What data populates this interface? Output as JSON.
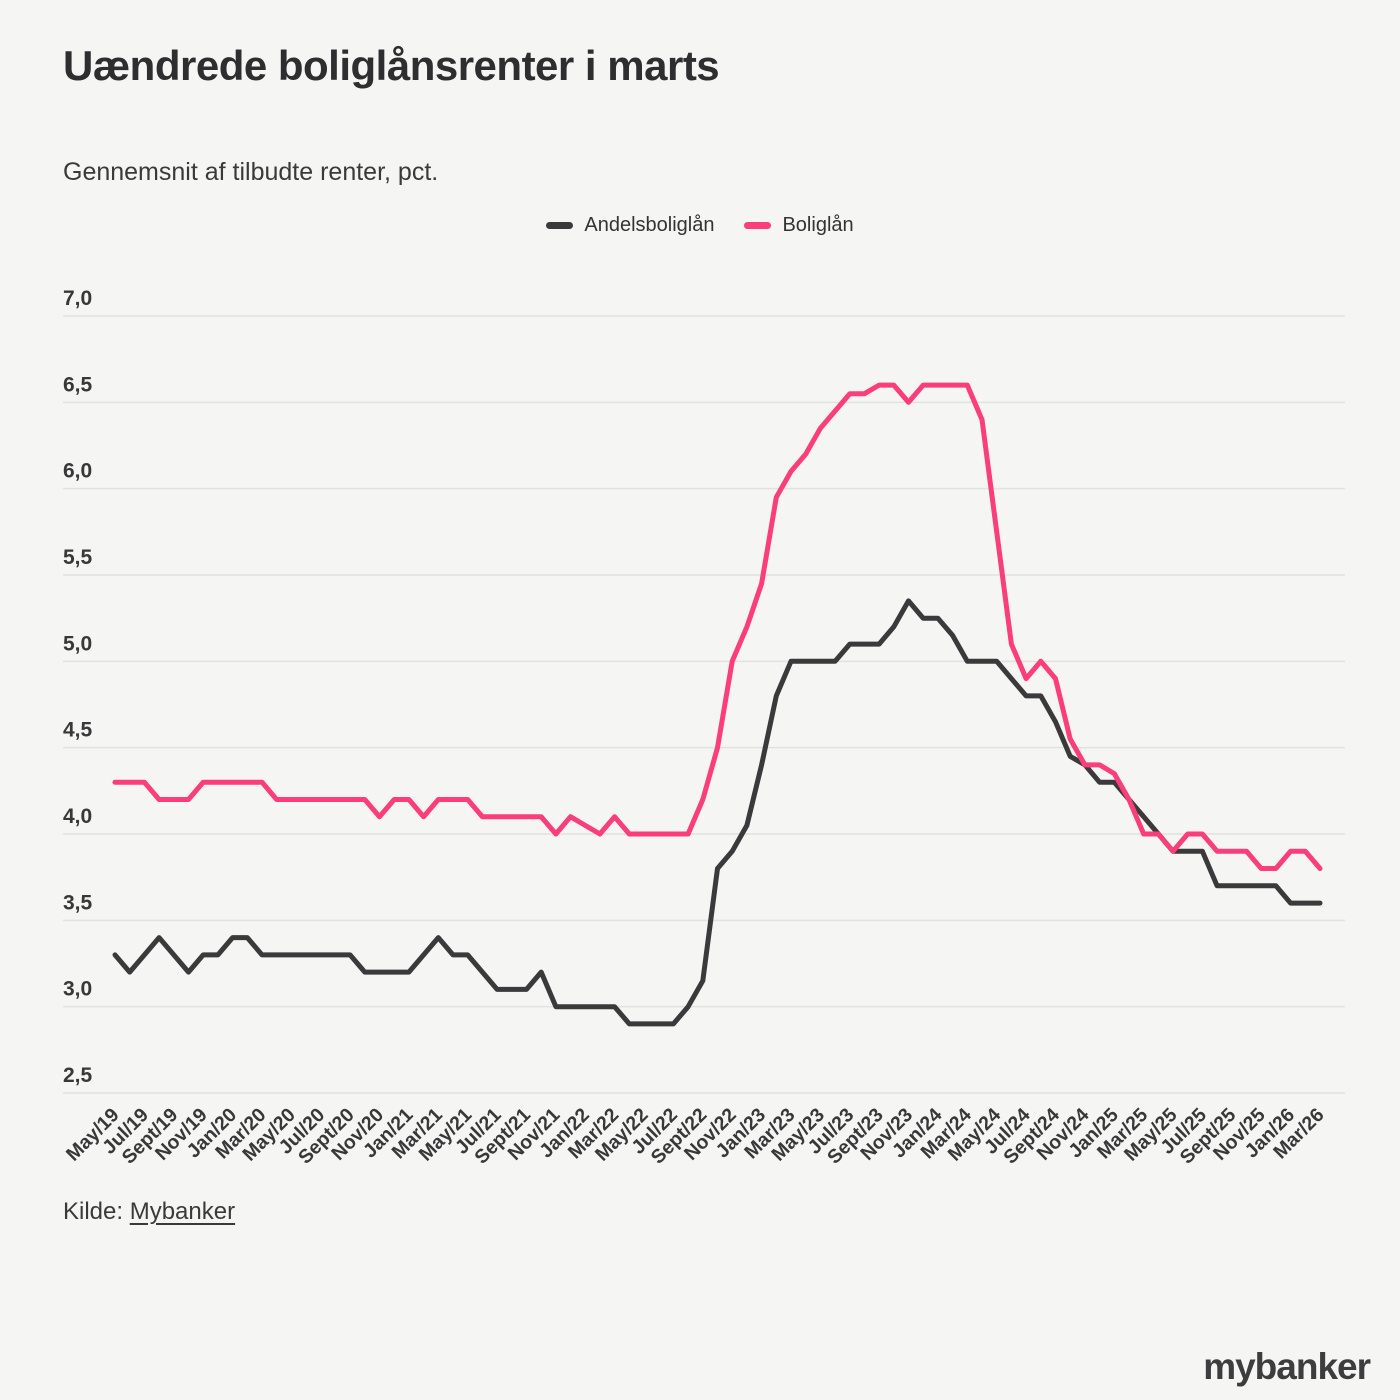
{
  "header": {
    "title": "Uændrede boliglånsrenter i marts",
    "subtitle": "Gennemsnit af tilbudte renter, pct."
  },
  "footer": {
    "source_label": "Kilde:",
    "source_link": "Mybanker",
    "logo": "mybanker"
  },
  "colors": {
    "background": "#f5f5f3",
    "gridline": "#e2e2e0",
    "axis_text": "#38383a",
    "andelsboliglan": "#3a3a3c",
    "boliglan": "#f93e7b"
  },
  "chart_data": {
    "type": "line",
    "title": "Uændrede boliglånsrenter i marts",
    "subtitle": "Gennemsnit af tilbudte renter, pct.",
    "grid": "horizontal",
    "legend_position": "top-center",
    "ylim": [
      2.5,
      7.0
    ],
    "y_tick_step": 0.5,
    "y_tick_labels": [
      "2,5",
      "3,0",
      "3,5",
      "4,0",
      "4,5",
      "5,0",
      "5,5",
      "6,0",
      "6,5",
      "7,0"
    ],
    "x_points_per_tick": 2,
    "x_tick_labels": [
      "May/19",
      "Jul/19",
      "Sept/19",
      "Nov/19",
      "Jan/20",
      "Mar/20",
      "May/20",
      "Jul/20",
      "Sept/20",
      "Nov/20",
      "Jan/21",
      "Mar/21",
      "May/21",
      "Jul/21",
      "Sept/21",
      "Nov/21",
      "Jan/22",
      "Mar/22",
      "May/22",
      "Jul/22",
      "Sept/22",
      "Nov/22",
      "Jan/23",
      "Mar/23",
      "May/23",
      "Jul/23",
      "Sept/23",
      "Nov/23",
      "Jan/24",
      "Mar/24",
      "May/24",
      "Jul/24",
      "Sept/24",
      "Nov/24",
      "Jan/25",
      "Mar/25",
      "May/25",
      "Jul/25",
      "Sept/25",
      "Nov/25",
      "Jan/26",
      "Mar/26"
    ],
    "series": [
      {
        "name": "Andelsboliglån",
        "color": "#3a3a3c",
        "values": [
          3.3,
          3.2,
          3.3,
          3.4,
          3.3,
          3.2,
          3.3,
          3.3,
          3.4,
          3.4,
          3.3,
          3.3,
          3.3,
          3.3,
          3.3,
          3.3,
          3.3,
          3.2,
          3.2,
          3.2,
          3.2,
          3.3,
          3.4,
          3.3,
          3.3,
          3.2,
          3.1,
          3.1,
          3.1,
          3.2,
          3.0,
          3.0,
          3.0,
          3.0,
          3.0,
          2.9,
          2.9,
          2.9,
          2.9,
          3.0,
          3.15,
          3.8,
          3.9,
          4.05,
          4.4,
          4.8,
          5.0,
          5.0,
          5.0,
          5.0,
          5.1,
          5.1,
          5.1,
          5.2,
          5.35,
          5.25,
          5.25,
          5.15,
          5.0,
          5.0,
          5.0,
          4.9,
          4.8,
          4.8,
          4.65,
          4.45,
          4.4,
          4.3,
          4.3,
          4.2,
          4.1,
          4.0,
          3.9,
          3.9,
          3.9,
          3.7,
          3.7,
          3.7,
          3.7,
          3.7,
          3.6,
          3.6,
          3.6
        ]
      },
      {
        "name": "Boliglån",
        "color": "#f93e7b",
        "values": [
          4.3,
          4.3,
          4.3,
          4.2,
          4.2,
          4.2,
          4.3,
          4.3,
          4.3,
          4.3,
          4.3,
          4.2,
          4.2,
          4.2,
          4.2,
          4.2,
          4.2,
          4.2,
          4.1,
          4.2,
          4.2,
          4.1,
          4.2,
          4.2,
          4.2,
          4.1,
          4.1,
          4.1,
          4.1,
          4.1,
          4.0,
          4.1,
          4.05,
          4.0,
          4.1,
          4.0,
          4.0,
          4.0,
          4.0,
          4.0,
          4.2,
          4.5,
          5.0,
          5.2,
          5.45,
          5.95,
          6.1,
          6.2,
          6.35,
          6.45,
          6.55,
          6.55,
          6.6,
          6.6,
          6.5,
          6.6,
          6.6,
          6.6,
          6.6,
          6.4,
          5.75,
          5.1,
          4.9,
          5.0,
          4.9,
          4.55,
          4.4,
          4.4,
          4.35,
          4.2,
          4.0,
          4.0,
          3.9,
          4.0,
          4.0,
          3.9,
          3.9,
          3.9,
          3.8,
          3.8,
          3.9,
          3.9,
          3.8
        ]
      }
    ]
  }
}
